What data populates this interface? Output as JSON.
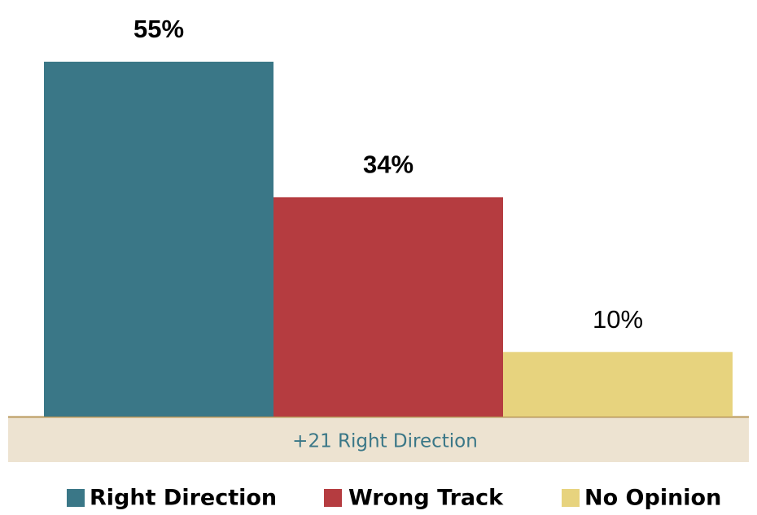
{
  "chart_data": {
    "type": "bar",
    "series": [
      {
        "name": "Right Direction",
        "color": "#3a7787",
        "values": [
          55
        ],
        "value_labels": [
          "55%"
        ]
      },
      {
        "name": "Wrong Track",
        "color": "#b53c40",
        "values": [
          34
        ],
        "value_labels": [
          "34%"
        ]
      },
      {
        "name": "No Opinion",
        "color": "#e7d37e",
        "values": [
          10
        ],
        "value_labels": [
          "10%"
        ]
      }
    ],
    "annotation": "+21 Right Direction"
  }
}
